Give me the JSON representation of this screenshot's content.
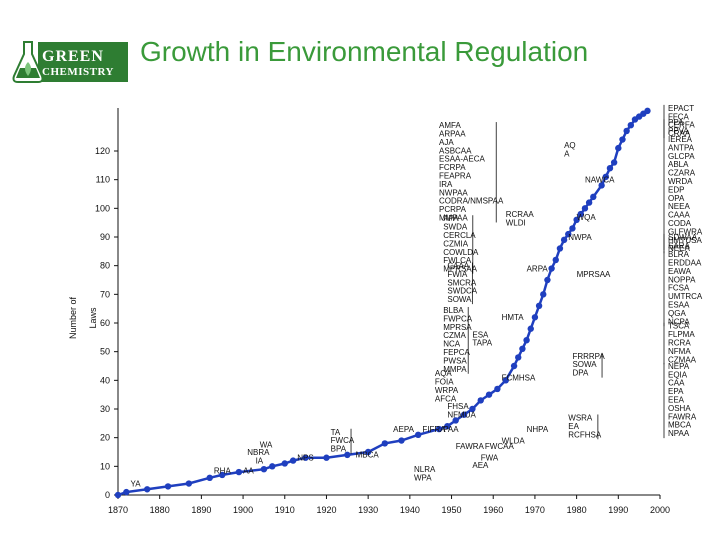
{
  "slide": {
    "title": "Growth in Environmental Regulation",
    "logo_line1": "GREEN",
    "logo_line2": "CHEMISTRY"
  },
  "chart_data": {
    "type": "line",
    "title": "Growth in Environmental Regulation",
    "xlabel": "",
    "ylabel_lines": [
      "Number of",
      "Laws"
    ],
    "xlim": [
      1870,
      2000
    ],
    "ylim": [
      0,
      135
    ],
    "x_ticks": [
      "1870",
      "1880",
      "1890",
      "1900",
      "1910",
      "1920",
      "1930",
      "1940",
      "1950",
      "1960",
      "1970",
      "1980",
      "1990",
      "2000"
    ],
    "y_ticks": [
      "0",
      "10",
      "20",
      "30",
      "40",
      "50",
      "60",
      "70",
      "80",
      "90",
      "100",
      "110",
      "120"
    ],
    "line_color": "#1f3fbf",
    "points": [
      [
        1870,
        0
      ],
      [
        1872,
        1
      ],
      [
        1877,
        2
      ],
      [
        1882,
        3
      ],
      [
        1887,
        4
      ],
      [
        1892,
        6
      ],
      [
        1895,
        7
      ],
      [
        1899,
        8
      ],
      [
        1905,
        9
      ],
      [
        1907,
        10
      ],
      [
        1910,
        11
      ],
      [
        1912,
        12
      ],
      [
        1915,
        13
      ],
      [
        1920,
        13
      ],
      [
        1925,
        14
      ],
      [
        1930,
        15
      ],
      [
        1934,
        18
      ],
      [
        1938,
        19
      ],
      [
        1942,
        21
      ],
      [
        1947,
        23
      ],
      [
        1949,
        24
      ],
      [
        1951,
        26
      ],
      [
        1953,
        28
      ],
      [
        1955,
        30
      ],
      [
        1957,
        33
      ],
      [
        1959,
        35
      ],
      [
        1961,
        37
      ],
      [
        1963,
        40
      ],
      [
        1965,
        45
      ],
      [
        1966,
        48
      ],
      [
        1967,
        51
      ],
      [
        1968,
        54
      ],
      [
        1969,
        58
      ],
      [
        1970,
        62
      ],
      [
        1971,
        66
      ],
      [
        1972,
        70
      ],
      [
        1973,
        75
      ],
      [
        1974,
        79
      ],
      [
        1975,
        82
      ],
      [
        1976,
        86
      ],
      [
        1977,
        89
      ],
      [
        1978,
        91
      ],
      [
        1979,
        93
      ],
      [
        1980,
        96
      ],
      [
        1981,
        98
      ],
      [
        1982,
        100
      ],
      [
        1983,
        102
      ],
      [
        1984,
        104
      ],
      [
        1986,
        108
      ],
      [
        1987,
        111
      ],
      [
        1988,
        114
      ],
      [
        1989,
        116
      ],
      [
        1990,
        121
      ],
      [
        1991,
        124
      ],
      [
        1992,
        127
      ],
      [
        1993,
        129
      ],
      [
        1994,
        131
      ],
      [
        1995,
        132
      ],
      [
        1996,
        133
      ],
      [
        1997,
        134
      ]
    ],
    "annotations": [
      {
        "x": 1873,
        "y": 3,
        "lines": [
          "YA"
        ]
      },
      {
        "x": 1893,
        "y": 7.5,
        "lines": [
          "RHA"
        ]
      },
      {
        "x": 1900,
        "y": 7.5,
        "lines": [
          "AA"
        ]
      },
      {
        "x": 1901,
        "y": 14,
        "lines": [
          "NBRA"
        ]
      },
      {
        "x": 1904,
        "y": 16.5,
        "lines": [
          "WA"
        ]
      },
      {
        "x": 1903,
        "y": 11,
        "lines": [
          "IA"
        ]
      },
      {
        "x": 1913,
        "y": 12,
        "lines": [
          "NPS"
        ]
      },
      {
        "x": 1921,
        "y": 21,
        "lines": [
          "TA",
          "FWCA",
          "BPA"
        ]
      },
      {
        "x": 1927,
        "y": 13,
        "lines": [
          "MBCA"
        ]
      },
      {
        "x": 1936,
        "y": 22,
        "lines": [
          "AEPA"
        ]
      },
      {
        "x": 1943,
        "y": 22,
        "lines": [
          "FIFRA"
        ]
      },
      {
        "x": 1948,
        "y": 22,
        "lines": [
          "PAA"
        ]
      },
      {
        "x": 1941,
        "y": 8,
        "lines": [
          "NLRA",
          "WPA"
        ]
      },
      {
        "x": 1951,
        "y": 16,
        "lines": [
          "FAWRA"
        ]
      },
      {
        "x": 1949,
        "y": 30,
        "lines": [
          "FHSA",
          "NFMUA"
        ]
      },
      {
        "x": 1946,
        "y": 35.5,
        "lines": [
          "WRPA",
          "AFCA"
        ]
      },
      {
        "x": 1946,
        "y": 41.5,
        "lines": [
          "AQA",
          "FOIA"
        ]
      },
      {
        "x": 1955,
        "y": 9.5,
        "lines": [
          "AEA"
        ]
      },
      {
        "x": 1958,
        "y": 16,
        "lines": [
          "FWCAA"
        ]
      },
      {
        "x": 1957,
        "y": 12,
        "lines": [
          "FWA"
        ]
      },
      {
        "x": 1962,
        "y": 18,
        "lines": [
          "WLDA"
        ]
      },
      {
        "x": 1968,
        "y": 22,
        "lines": [
          "NHPA"
        ]
      },
      {
        "x": 1962,
        "y": 40,
        "lines": [
          "FCMHSA"
        ]
      },
      {
        "x": 1978,
        "y": 26,
        "lines": [
          "WSRA",
          "EA",
          "RCFHSA"
        ]
      },
      {
        "x": 1979,
        "y": 47.5,
        "lines": [
          "FRRRPA",
          "SOWA",
          "DPA"
        ]
      },
      {
        "x": 1955,
        "y": 55,
        "lines": [
          "ESA",
          "TAPA"
        ]
      },
      {
        "x": 1962,
        "y": 61,
        "lines": [
          "HMTA"
        ]
      },
      {
        "x": 1948,
        "y": 63.5,
        "lines": [
          "BLBA",
          "FWPCA",
          "MPRSA",
          "CZMA",
          "NCA",
          "FEPCA",
          "PWSA",
          "MMPA"
        ]
      },
      {
        "x": 1949,
        "y": 79,
        "lines": [
          "CAAA",
          "FWIA",
          "SMCRA",
          "SWDCA",
          "SOWA"
        ]
      },
      {
        "x": 1948,
        "y": 95.5,
        "lines": [
          "APA",
          "SWDA",
          "CERCLA",
          "CZMIA",
          "COWLDA",
          "FWLCA",
          "MPRSAA"
        ]
      },
      {
        "x": 1947,
        "y": 128,
        "lines": [
          "AMFA",
          "ARPAA",
          "AJA",
          "ASBCAA",
          "ESAA-AECA",
          "FCRPA",
          "FEAPRA",
          "IRA",
          "NWPAA",
          "CODRA/NMSPAA",
          "PCRPA",
          "MMPAA"
        ]
      },
      {
        "x": 1968,
        "y": 78,
        "lines": [
          "ARPA"
        ]
      },
      {
        "x": 1963,
        "y": 97,
        "lines": [
          "RCRAA",
          "WLDI"
        ]
      },
      {
        "x": 1978,
        "y": 89,
        "lines": [
          "NWPA"
        ]
      },
      {
        "x": 1980,
        "y": 96,
        "lines": [
          "WQA"
        ]
      },
      {
        "x": 1977,
        "y": 121,
        "lines": [
          "AQ",
          "A"
        ]
      },
      {
        "x": 1982,
        "y": 109,
        "lines": [
          "NAWCA"
        ]
      },
      {
        "x": 1980,
        "y": 76,
        "lines": [
          "MPRSAA"
        ]
      }
    ],
    "right_column": [
      {
        "y": 134,
        "lines": [
          "EPACT",
          "FFCA",
          "CERFA",
          "CRAA"
        ]
      },
      {
        "y": 129,
        "lines": [
          "PPA",
          "PPVA",
          "IEREA",
          "ANTPA",
          "GLCPA",
          "ABLA",
          "CZARA",
          "WRDA",
          "EDP",
          "OPA",
          "NEEA",
          "CAAA",
          "CODA",
          "GLFWRA",
          "HMTUSA",
          "NEEA"
        ]
      },
      {
        "y": 89,
        "lines": [
          "SDWAA",
          "SARA"
        ]
      },
      {
        "y": 83,
        "lines": [
          "BLRA",
          "ERDDAA",
          "EAWA",
          "NOPPA",
          "FCSA",
          "UMTRCA",
          "ESAA",
          "QGA",
          "NCPA"
        ]
      },
      {
        "y": 58,
        "lines": [
          "TSCA",
          "FLPMA",
          "RCRA",
          "NFMA",
          "CZMAA"
        ]
      },
      {
        "y": 44,
        "lines": [
          "NEPA",
          "EQIA",
          "CAA",
          "EPA",
          "EEA",
          "OSHA",
          "FAWRA",
          "MBCA",
          "NPAA"
        ]
      }
    ]
  }
}
